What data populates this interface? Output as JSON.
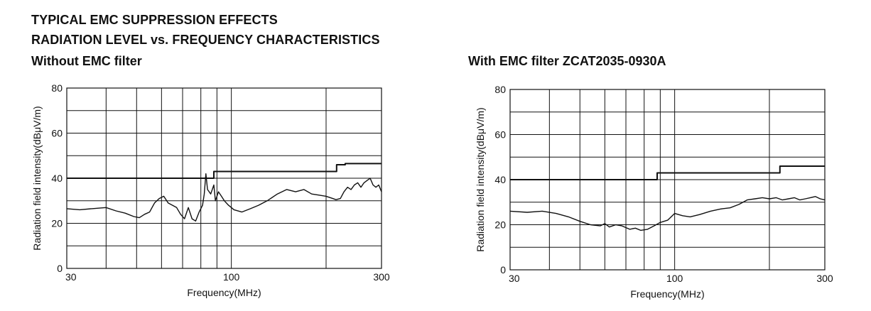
{
  "headings": {
    "line1": "TYPICAL EMC SUPPRESSION EFFECTS",
    "line2": "RADIATION LEVEL vs. FREQUENCY CHARACTERISTICS"
  },
  "chart_data": [
    {
      "type": "line",
      "title": "Without EMC filter",
      "xlabel": "Frequency(MHz)",
      "ylabel": "Radiation field intensity(dBμV/m)",
      "x_scale": "log",
      "xlim": [
        30,
        300
      ],
      "ylim": [
        0,
        80
      ],
      "x_tick_labels": [
        "30",
        "100",
        "300"
      ],
      "y_tick_labels": [
        "0",
        "20",
        "40",
        "60",
        "80"
      ],
      "grid": true,
      "series": [
        {
          "role": "limit",
          "color": "#111111",
          "points": [
            [
              30,
              40
            ],
            [
              88,
              40
            ],
            [
              88,
              43
            ],
            [
              216,
              43
            ],
            [
              216,
              46
            ],
            [
              230,
              46
            ],
            [
              230,
              46.5
            ],
            [
              300,
              46.5
            ]
          ]
        },
        {
          "role": "measured",
          "color": "#111111",
          "points": [
            [
              30,
              26.5
            ],
            [
              33,
              26
            ],
            [
              36,
              26.5
            ],
            [
              40,
              27
            ],
            [
              43,
              25.5
            ],
            [
              46,
              24.5
            ],
            [
              49,
              23
            ],
            [
              51,
              22.5
            ],
            [
              53,
              24
            ],
            [
              55,
              25
            ],
            [
              57,
              29
            ],
            [
              59,
              31
            ],
            [
              61,
              32
            ],
            [
              63,
              29
            ],
            [
              65,
              28
            ],
            [
              67,
              27
            ],
            [
              69,
              24
            ],
            [
              71,
              22
            ],
            [
              73,
              27
            ],
            [
              75,
              22
            ],
            [
              77,
              21
            ],
            [
              79,
              25
            ],
            [
              81,
              28
            ],
            [
              82,
              33
            ],
            [
              83,
              42
            ],
            [
              84,
              35
            ],
            [
              86,
              33
            ],
            [
              88,
              37
            ],
            [
              89,
              30
            ],
            [
              91,
              34
            ],
            [
              93,
              32
            ],
            [
              95,
              30
            ],
            [
              98,
              28
            ],
            [
              102,
              26
            ],
            [
              108,
              25
            ],
            [
              115,
              26.5
            ],
            [
              122,
              28
            ],
            [
              130,
              30
            ],
            [
              140,
              33
            ],
            [
              150,
              35
            ],
            [
              160,
              34
            ],
            [
              170,
              35
            ],
            [
              180,
              33
            ],
            [
              190,
              32.5
            ],
            [
              200,
              32
            ],
            [
              210,
              31
            ],
            [
              215,
              30.5
            ],
            [
              222,
              31
            ],
            [
              228,
              34
            ],
            [
              234,
              36
            ],
            [
              240,
              35
            ],
            [
              246,
              37
            ],
            [
              252,
              38
            ],
            [
              258,
              36
            ],
            [
              264,
              38
            ],
            [
              270,
              39
            ],
            [
              276,
              40
            ],
            [
              282,
              37
            ],
            [
              288,
              36
            ],
            [
              294,
              37
            ],
            [
              300,
              34
            ]
          ]
        }
      ]
    },
    {
      "type": "line",
      "title": "With EMC filter ZCAT2035-0930A",
      "xlabel": "Frequency(MHz)",
      "ylabel": "Radiation field intensity(dBμV/m)",
      "x_scale": "log",
      "xlim": [
        30,
        300
      ],
      "ylim": [
        0,
        80
      ],
      "x_tick_labels": [
        "30",
        "100",
        "300"
      ],
      "y_tick_labels": [
        "0",
        "20",
        "40",
        "60",
        "80"
      ],
      "grid": true,
      "series": [
        {
          "role": "limit",
          "color": "#111111",
          "points": [
            [
              30,
              40
            ],
            [
              88,
              40
            ],
            [
              88,
              43
            ],
            [
              216,
              43
            ],
            [
              216,
              46
            ],
            [
              300,
              46
            ]
          ]
        },
        {
          "role": "measured",
          "color": "#111111",
          "points": [
            [
              30,
              26
            ],
            [
              34,
              25.5
            ],
            [
              38,
              26
            ],
            [
              42,
              25
            ],
            [
              46,
              23.5
            ],
            [
              50,
              21.5
            ],
            [
              54,
              20
            ],
            [
              58,
              19.5
            ],
            [
              60,
              20.5
            ],
            [
              62,
              19
            ],
            [
              65,
              20
            ],
            [
              68,
              19.5
            ],
            [
              72,
              18
            ],
            [
              75,
              18.5
            ],
            [
              78,
              17.5
            ],
            [
              82,
              18
            ],
            [
              86,
              19.5
            ],
            [
              90,
              21
            ],
            [
              95,
              22
            ],
            [
              100,
              25
            ],
            [
              106,
              24
            ],
            [
              112,
              23.5
            ],
            [
              120,
              24.5
            ],
            [
              130,
              26
            ],
            [
              140,
              27
            ],
            [
              150,
              27.5
            ],
            [
              160,
              29
            ],
            [
              170,
              31
            ],
            [
              180,
              31.5
            ],
            [
              190,
              32
            ],
            [
              200,
              31.5
            ],
            [
              210,
              32
            ],
            [
              220,
              31
            ],
            [
              230,
              31.5
            ],
            [
              240,
              32
            ],
            [
              250,
              31
            ],
            [
              260,
              31.5
            ],
            [
              270,
              32
            ],
            [
              280,
              32.5
            ],
            [
              290,
              31.5
            ],
            [
              300,
              31
            ]
          ]
        }
      ]
    }
  ]
}
